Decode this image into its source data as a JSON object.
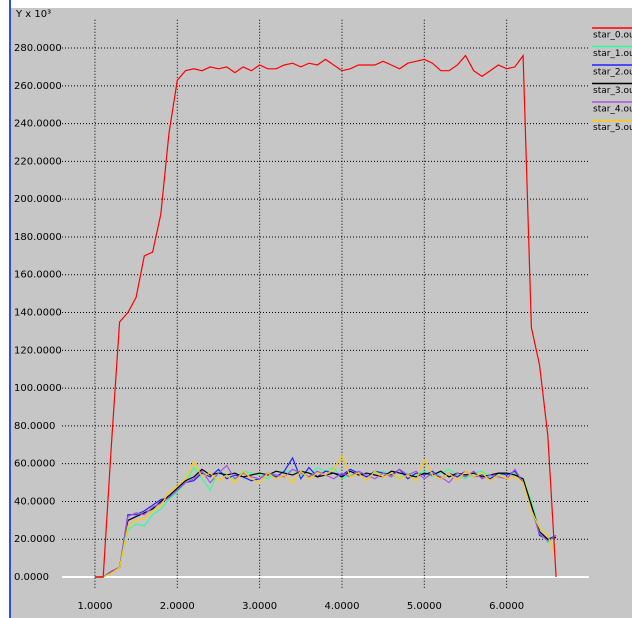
{
  "chart_data": {
    "type": "line",
    "y_label": "Y x 10³",
    "legend": "right",
    "grid": true,
    "x": [
      1.0,
      1.1,
      1.2,
      1.3,
      1.4,
      1.5,
      1.6,
      1.7,
      1.8,
      1.9,
      2.0,
      2.1,
      2.2,
      2.3,
      2.4,
      2.5,
      2.6,
      2.7,
      2.8,
      2.9,
      3.0,
      3.1,
      3.2,
      3.3,
      3.4,
      3.5,
      3.6,
      3.7,
      3.8,
      3.9,
      4.0,
      4.1,
      4.2,
      4.3,
      4.4,
      4.5,
      4.6,
      4.7,
      4.8,
      4.9,
      5.0,
      5.1,
      5.2,
      5.3,
      5.4,
      5.5,
      5.6,
      5.7,
      5.8,
      5.9,
      6.0,
      6.1,
      6.2,
      6.3,
      6.4,
      6.5,
      6.6
    ],
    "xlim": [
      0.6,
      7.0
    ],
    "xticks": [
      {
        "value": 1,
        "label": "1.0000"
      },
      {
        "value": 2,
        "label": "2.0000"
      },
      {
        "value": 3,
        "label": "3.0000"
      },
      {
        "value": 4,
        "label": "4.0000"
      },
      {
        "value": 5,
        "label": "5.0000"
      },
      {
        "value": 6,
        "label": "6.0000"
      }
    ],
    "ylim": [
      -12,
      295
    ],
    "yticks": [
      {
        "value": 0,
        "label": "0.0000"
      },
      {
        "value": 20,
        "label": "20.0000"
      },
      {
        "value": 40,
        "label": "40.0000"
      },
      {
        "value": 60,
        "label": "60.0000"
      },
      {
        "value": 80,
        "label": "80.0000"
      },
      {
        "value": 100,
        "label": "100.0000"
      },
      {
        "value": 120,
        "label": "120.0000"
      },
      {
        "value": 140,
        "label": "140.0000"
      },
      {
        "value": 160,
        "label": "160.0000"
      },
      {
        "value": 180,
        "label": "180.0000"
      },
      {
        "value": 200,
        "label": "200.0000"
      },
      {
        "value": 220,
        "label": "220.0000"
      },
      {
        "value": 240,
        "label": "240.0000"
      },
      {
        "value": 260,
        "label": "260.0000"
      },
      {
        "value": 280,
        "label": "280.0000"
      }
    ],
    "series": [
      {
        "name": "star_0.ou",
        "color": "#ff0000",
        "values": [
          0,
          0,
          70,
          135,
          140,
          148,
          170,
          172,
          192,
          235,
          263,
          268,
          269,
          268,
          270,
          269,
          270,
          267,
          270,
          268,
          271,
          269,
          269,
          271,
          272,
          270,
          272,
          271,
          274,
          271,
          268,
          269,
          271,
          271,
          271,
          273,
          271,
          269,
          272,
          273,
          274,
          272,
          268,
          268,
          271,
          276,
          268,
          265,
          268,
          271,
          269,
          270,
          276,
          132,
          112,
          75,
          0
        ]
      },
      {
        "name": "star_1.ou",
        "color": "#33ff99",
        "values": [
          0,
          0,
          2,
          5,
          25,
          28,
          27,
          33,
          36,
          41,
          45,
          50,
          58,
          52,
          46,
          56,
          54,
          52,
          56,
          55,
          54,
          52,
          56,
          55,
          57,
          54,
          53,
          58,
          56,
          58,
          52,
          54,
          55,
          53,
          55,
          56,
          54,
          52,
          55,
          54,
          56,
          53,
          55,
          57,
          54,
          52,
          55,
          56,
          53,
          54,
          55,
          55,
          52,
          40,
          25,
          18,
          22
        ]
      },
      {
        "name": "star_2.ou",
        "color": "#2222ff",
        "values": [
          0,
          0,
          3,
          5,
          33,
          33,
          35,
          38,
          41,
          42,
          46,
          50,
          51,
          55,
          53,
          57,
          52,
          54,
          53,
          51,
          52,
          55,
          53,
          56,
          63,
          52,
          58,
          53,
          56,
          55,
          54,
          57,
          55,
          53,
          56,
          55,
          54,
          57,
          52,
          55,
          54,
          56,
          52,
          55,
          53,
          56,
          53,
          54,
          52,
          55,
          54,
          56,
          50,
          38,
          22,
          20,
          22
        ]
      },
      {
        "name": "star_3.ou",
        "color": "#000000",
        "values": [
          0,
          0,
          3,
          5,
          30,
          32,
          34,
          36,
          40,
          43,
          47,
          51,
          53,
          57,
          54,
          55,
          54,
          55,
          53,
          54,
          55,
          54,
          56,
          55,
          54,
          56,
          55,
          53,
          54,
          55,
          53,
          56,
          54,
          55,
          54,
          53,
          56,
          55,
          54,
          53,
          55,
          54,
          56,
          53,
          55,
          54,
          55,
          53,
          54,
          55,
          55,
          54,
          52,
          38,
          24,
          20,
          21
        ]
      },
      {
        "name": "star_4.ou",
        "color": "#aa55dd",
        "values": [
          0,
          0,
          3,
          5,
          32,
          34,
          33,
          37,
          39,
          42,
          46,
          50,
          52,
          56,
          50,
          55,
          59,
          52,
          55,
          53,
          52,
          55,
          54,
          53,
          57,
          55,
          53,
          56,
          54,
          52,
          55,
          53,
          56,
          54,
          52,
          55,
          53,
          57,
          54,
          56,
          52,
          55,
          53,
          50,
          55,
          53,
          56,
          52,
          54,
          53,
          52,
          57,
          50,
          36,
          23,
          19,
          22
        ]
      },
      {
        "name": "star_5.ou",
        "color": "#ffcc00",
        "values": [
          0,
          0,
          2,
          5,
          27,
          30,
          31,
          35,
          38,
          45,
          48,
          52,
          61,
          53,
          55,
          51,
          54,
          50,
          56,
          52,
          50,
          55,
          52,
          54,
          50,
          56,
          52,
          55,
          54,
          57,
          64,
          53,
          55,
          51,
          56,
          53,
          55,
          52,
          54,
          51,
          62,
          54,
          52,
          55,
          51,
          56,
          53,
          55,
          51,
          54,
          52,
          53,
          50,
          35,
          26,
          22,
          10
        ]
      }
    ]
  }
}
